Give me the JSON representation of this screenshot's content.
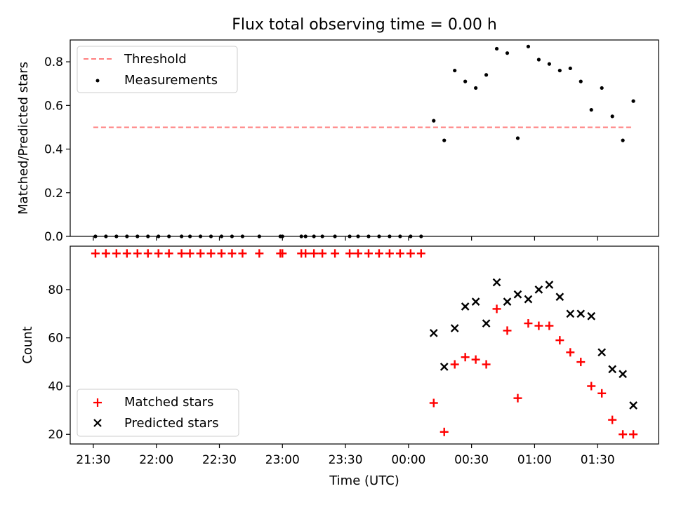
{
  "title": "Flux total observing time = 0.00 h",
  "xlabel": "Time (UTC)",
  "colors": {
    "threshold": "#ff7f7f",
    "measurement": "#000000",
    "matched": "#ff0000",
    "predicted": "#000000"
  },
  "chart_data": [
    {
      "type": "scatter",
      "panel": "top",
      "ylabel": "Matched/Predicted stars",
      "xlim": [
        "21:19",
        "01:59"
      ],
      "ylim": [
        0,
        0.9
      ],
      "yticks": [
        0.0,
        0.2,
        0.4,
        0.6,
        0.8
      ],
      "yticklabels": [
        "0.0",
        "0.2",
        "0.4",
        "0.6",
        "0.8"
      ],
      "legend_position": "upper-left",
      "threshold": {
        "name": "Threshold",
        "value": 0.5,
        "x_range": [
          "21:30",
          "01:47"
        ]
      },
      "series": [
        {
          "name": "Measurements",
          "x": [
            "21:31",
            "21:36",
            "21:41",
            "21:46",
            "21:51",
            "21:56",
            "22:01",
            "22:06",
            "22:12",
            "22:16",
            "22:21",
            "22:26",
            "22:31",
            "22:36",
            "22:41",
            "22:49",
            "22:59",
            "23:00",
            "23:09",
            "23:11",
            "23:15",
            "23:19",
            "23:25",
            "23:32",
            "23:36",
            "23:41",
            "23:46",
            "23:51",
            "23:56",
            "00:01",
            "00:06",
            "00:12",
            "00:17",
            "00:22",
            "00:27",
            "00:32",
            "00:37",
            "00:42",
            "00:47",
            "00:52",
            "00:57",
            "01:02",
            "01:07",
            "01:12",
            "01:17",
            "01:22",
            "01:27",
            "01:32",
            "01:37",
            "01:42",
            "01:47"
          ],
          "y": [
            0,
            0,
            0,
            0,
            0,
            0,
            0,
            0,
            0,
            0,
            0,
            0,
            0,
            0,
            0,
            0,
            0,
            0,
            0,
            0,
            0,
            0,
            0,
            0,
            0,
            0,
            0,
            0,
            0,
            0,
            0,
            0.53,
            0.44,
            0.76,
            0.71,
            0.68,
            0.74,
            0.86,
            0.84,
            0.45,
            0.87,
            0.81,
            0.79,
            0.76,
            0.77,
            0.71,
            0.58,
            0.68,
            0.55,
            0.44,
            0.62
          ]
        }
      ]
    },
    {
      "type": "scatter",
      "panel": "bottom",
      "ylabel": "Count",
      "xlim": [
        "21:19",
        "01:59"
      ],
      "ylim": [
        16,
        98
      ],
      "yticks": [
        20,
        40,
        60,
        80
      ],
      "yticklabels": [
        "20",
        "40",
        "60",
        "80"
      ],
      "xticks": [
        "21:30",
        "22:00",
        "22:30",
        "23:00",
        "23:30",
        "00:00",
        "00:30",
        "01:00",
        "01:30"
      ],
      "xticklabels": [
        "21:30",
        "22:00",
        "22:30",
        "23:00",
        "23:30",
        "00:00",
        "00:30",
        "01:00",
        "01:30"
      ],
      "legend_position": "lower-left",
      "series": [
        {
          "name": "Matched stars",
          "marker": "plus",
          "x": [
            "21:31",
            "21:36",
            "21:41",
            "21:46",
            "21:51",
            "21:56",
            "22:01",
            "22:06",
            "22:12",
            "22:16",
            "22:21",
            "22:26",
            "22:31",
            "22:36",
            "22:41",
            "22:49",
            "22:59",
            "23:00",
            "23:09",
            "23:11",
            "23:15",
            "23:19",
            "23:25",
            "23:32",
            "23:36",
            "23:41",
            "23:46",
            "23:51",
            "23:56",
            "00:01",
            "00:06",
            "00:12",
            "00:17",
            "00:22",
            "00:27",
            "00:32",
            "00:37",
            "00:42",
            "00:47",
            "00:52",
            "00:57",
            "01:02",
            "01:07",
            "01:12",
            "01:17",
            "01:22",
            "01:27",
            "01:32",
            "01:37",
            "01:42",
            "01:47"
          ],
          "y": [
            95,
            95,
            95,
            95,
            95,
            95,
            95,
            95,
            95,
            95,
            95,
            95,
            95,
            95,
            95,
            95,
            95,
            95,
            95,
            95,
            95,
            95,
            95,
            95,
            95,
            95,
            95,
            95,
            95,
            95,
            95,
            33,
            21,
            49,
            52,
            51,
            49,
            72,
            63,
            35,
            66,
            65,
            65,
            59,
            54,
            50,
            40,
            37,
            26,
            20,
            20
          ]
        },
        {
          "name": "Predicted stars",
          "marker": "x",
          "x": [
            "00:12",
            "00:17",
            "00:22",
            "00:27",
            "00:32",
            "00:37",
            "00:42",
            "00:47",
            "00:52",
            "00:57",
            "01:02",
            "01:07",
            "01:12",
            "01:17",
            "01:22",
            "01:27",
            "01:32",
            "01:37",
            "01:42",
            "01:47"
          ],
          "y": [
            62,
            48,
            64,
            73,
            75,
            66,
            83,
            75,
            78,
            76,
            80,
            82,
            77,
            70,
            70,
            69,
            54,
            47,
            45,
            32
          ]
        }
      ]
    }
  ]
}
